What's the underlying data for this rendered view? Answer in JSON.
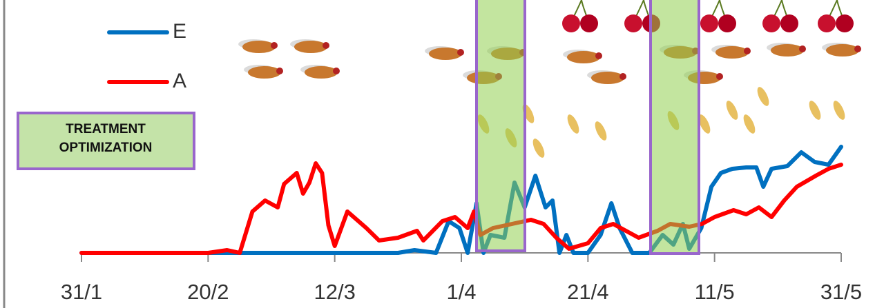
{
  "chart_data": {
    "type": "line",
    "legend_labels": [
      "E",
      "A"
    ],
    "annotation": "TREATMENT OPTIMIZATION",
    "xlim": [
      0,
      120
    ],
    "xticks": [
      {
        "value": 0,
        "label": "31/1"
      },
      {
        "value": 20,
        "label": "20/2"
      },
      {
        "value": 40,
        "label": "12/3"
      },
      {
        "value": 60,
        "label": "1/4"
      },
      {
        "value": 80,
        "label": "21/4"
      },
      {
        "value": 100,
        "label": "11/5"
      },
      {
        "value": 120,
        "label": "31/5"
      }
    ],
    "ylim": [
      0,
      100
    ],
    "series": [
      {
        "name": "E",
        "color": "#0070c0",
        "x": [
          0,
          10,
          20,
          30,
          40,
          50,
          52.6,
          56,
          58,
          59.7,
          61,
          62.4,
          63.5,
          64.6,
          66.8,
          68.4,
          70,
          71.7,
          73.3,
          74.4,
          75.5,
          76.6,
          77.7,
          80,
          82,
          83.7,
          85,
          87,
          89.7,
          91.8,
          93.5,
          95,
          96,
          97.9,
          99.5,
          101,
          102.8,
          105,
          106.6,
          107.7,
          109,
          111.5,
          113.7,
          115.8,
          118,
          120
        ],
        "values": [
          0,
          0,
          0,
          0,
          0,
          0,
          2,
          0,
          23,
          18,
          0,
          36,
          0,
          13,
          11,
          51,
          33,
          56,
          33,
          38,
          0,
          13,
          0,
          0,
          13,
          36,
          18,
          0,
          0,
          13,
          6,
          21,
          3,
          18,
          48,
          58,
          61,
          62,
          62,
          48,
          61,
          63,
          73,
          66,
          64,
          77
        ]
      },
      {
        "name": "A",
        "color": "#ff0000",
        "x": [
          0,
          10,
          20,
          23,
          25,
          27,
          29,
          31,
          32,
          34,
          35,
          36,
          37,
          38,
          39,
          40,
          42,
          43,
          45,
          47,
          50,
          53,
          54,
          57,
          59,
          61,
          62,
          63,
          65,
          69,
          71,
          73,
          75,
          77,
          80,
          82,
          84,
          86,
          88,
          91,
          93,
          96,
          98,
          100,
          103,
          105,
          107,
          109,
          111,
          113,
          116,
          118,
          120
        ],
        "values": [
          0,
          0,
          0,
          2,
          0,
          30,
          38,
          33,
          50,
          58,
          43,
          51,
          65,
          58,
          20,
          5,
          30,
          26,
          18,
          9,
          11,
          16,
          9,
          23,
          26,
          18,
          30,
          13,
          18,
          22,
          24,
          21,
          11,
          3,
          7,
          18,
          21,
          16,
          11,
          16,
          21,
          19,
          21,
          26,
          31,
          28,
          33,
          26,
          38,
          48,
          56,
          61,
          64
        ]
      }
    ]
  }
}
